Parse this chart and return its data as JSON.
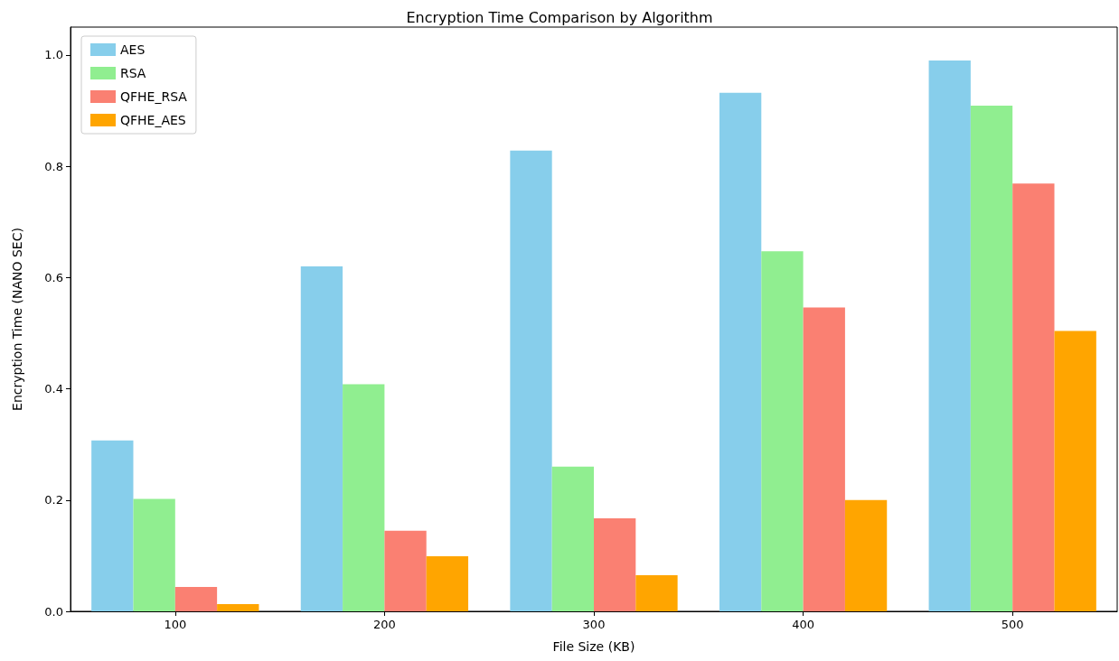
{
  "chart_data": {
    "type": "bar",
    "title": "Encryption Time Comparison by Algorithm",
    "xlabel": "File Size (KB)",
    "ylabel": "Encryption Time (NANO SEC)",
    "categories": [
      "100",
      "200",
      "300",
      "400",
      "500"
    ],
    "series": [
      {
        "name": "AES",
        "color": "#87ceeb",
        "values": [
          0.307,
          0.62,
          0.828,
          0.932,
          0.99
        ]
      },
      {
        "name": "RSA",
        "color": "#90ee90",
        "values": [
          0.202,
          0.408,
          0.26,
          0.647,
          0.909
        ]
      },
      {
        "name": "QFHE_RSA",
        "color": "#fa8072",
        "values": [
          0.044,
          0.145,
          0.167,
          0.546,
          0.769
        ]
      },
      {
        "name": "QFHE_AES",
        "color": "#ffa500",
        "values": [
          0.013,
          0.099,
          0.065,
          0.2,
          0.504
        ]
      }
    ],
    "ylim": [
      0,
      1.05
    ],
    "yticks": [
      {
        "value": 0,
        "label": "0.0"
      },
      0.2,
      0.4,
      0.6,
      0.8,
      {
        "value": 1,
        "label": "1.0"
      }
    ],
    "grid": false,
    "legend": "top left"
  }
}
